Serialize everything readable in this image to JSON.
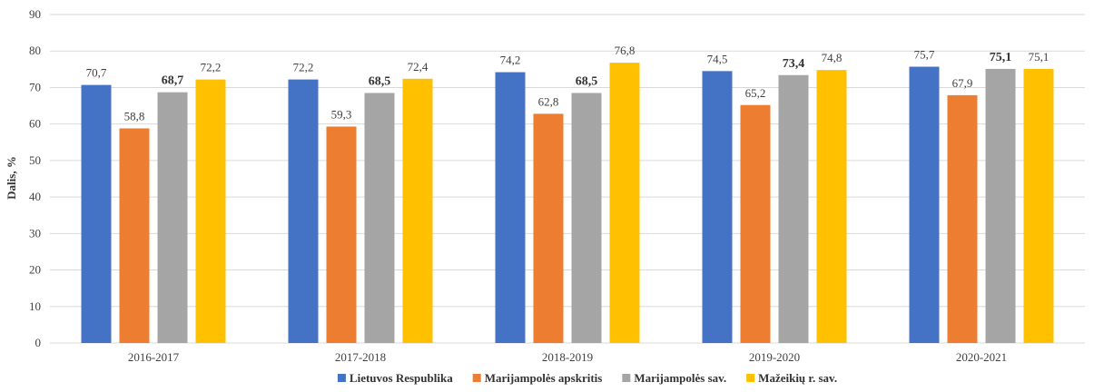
{
  "chart_data": {
    "type": "bar",
    "title": "",
    "xlabel": "",
    "ylabel": "Dalis, %",
    "ylim": [
      0,
      90
    ],
    "yticks": [
      0,
      10,
      20,
      30,
      40,
      50,
      60,
      70,
      80,
      90
    ],
    "grid": true,
    "legend_position": "bottom",
    "categories": [
      "2016-2017",
      "2017-2018",
      "2018-2019",
      "2019-2020",
      "2020-2021"
    ],
    "series": [
      {
        "name": "Lietuvos Respublika",
        "color": "#4472C4",
        "values": [
          70.7,
          72.2,
          74.2,
          74.5,
          75.7
        ],
        "labels": [
          "70,7",
          "72,2",
          "74,2",
          "74,5",
          "75,7"
        ],
        "bold_labels": false
      },
      {
        "name": "Marijampolės apskritis",
        "color": "#ED7D31",
        "values": [
          58.8,
          59.3,
          62.8,
          65.2,
          67.9
        ],
        "labels": [
          "58,8",
          "59,3",
          "62,8",
          "65,2",
          "67,9"
        ],
        "bold_labels": false
      },
      {
        "name": "Marijampolės sav.",
        "color": "#A5A5A5",
        "values": [
          68.7,
          68.5,
          68.5,
          73.4,
          75.1
        ],
        "labels": [
          "68,7",
          "68,5",
          "68,5",
          "73,4",
          "75,1"
        ],
        "bold_labels": true
      },
      {
        "name": "Mažeikių r. sav.",
        "color": "#FFC000",
        "values": [
          72.2,
          72.4,
          76.8,
          74.8,
          75.1
        ],
        "labels": [
          "72,2",
          "72,4",
          "76,8",
          "74,8",
          "75,1"
        ],
        "bold_labels": false
      }
    ]
  }
}
